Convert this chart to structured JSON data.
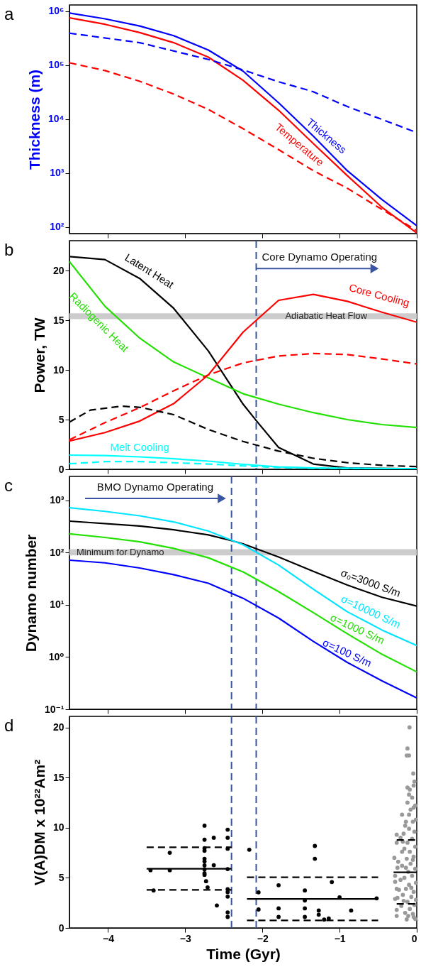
{
  "chart_data": [
    {
      "type": "line",
      "title": "a",
      "ylabel": "Thickness (m)",
      "log": true,
      "xlim": [
        -4.5,
        0
      ],
      "xticks": [
        {
          "value": -4,
          "label": null
        },
        {
          "value": -3,
          "label": null
        },
        {
          "value": -2,
          "label": null
        },
        {
          "value": -1,
          "label": null
        },
        {
          "value": 0,
          "label": null
        }
      ],
      "ylim": [
        75,
        1300000
      ],
      "yticks": [
        {
          "value": 100,
          "label": "10²"
        },
        {
          "value": 1000,
          "label": "10³"
        },
        {
          "value": 10000,
          "label": "10⁴"
        },
        {
          "value": 100000,
          "label": "10⁵"
        },
        {
          "value": 1000000,
          "label": "10⁶"
        }
      ],
      "tick_labels": "y",
      "series": [
        {
          "name": "Thickness",
          "color": "#0000ff",
          "x": [
            -4.5,
            -4.04,
            -3.59,
            -3.15,
            -2.7,
            -2.25,
            -1.79,
            -1.34,
            -0.9,
            -0.45,
            0
          ],
          "values": [
            920000,
            720000,
            530000,
            350000,
            190000,
            77000,
            20000,
            4800,
            1100,
            320,
            105
          ]
        },
        {
          "name": "Temperature",
          "color": "#ff0000",
          "x": [
            -4.5,
            -4.04,
            -3.59,
            -3.15,
            -2.7,
            -2.25,
            -1.79,
            -1.34,
            -0.9,
            -0.45,
            0
          ],
          "values": [
            750000,
            570000,
            400000,
            260000,
            140000,
            52000,
            14500,
            3500,
            890,
            230,
            77
          ]
        },
        {
          "color": "#0000ff",
          "line_style": "dashed",
          "x": [
            -4.5,
            -3.59,
            -2.7,
            -2.25,
            -1.79,
            -1.34,
            -0.9,
            -0.45,
            0
          ],
          "values": [
            390000,
            260000,
            127000,
            81000,
            49000,
            32000,
            17000,
            9800,
            5600
          ]
        },
        {
          "color": "#ff0000",
          "line_style": "dashed",
          "x": [
            -4.5,
            -4.04,
            -3.59,
            -3.15,
            -2.7,
            -2.25,
            -1.79,
            -1.34,
            -0.9,
            -0.45,
            0
          ],
          "values": [
            110000,
            79000,
            50000,
            29000,
            15000,
            6600,
            2700,
            1100,
            520,
            210,
            85
          ]
        }
      ]
    },
    {
      "type": "line",
      "title": "b",
      "ylabel": "Power, TW",
      "xlim": [
        -4.5,
        0
      ],
      "xticks": [
        {
          "value": -4,
          "label": null
        },
        {
          "value": -3,
          "label": null
        },
        {
          "value": -2,
          "label": null
        },
        {
          "value": -1,
          "label": null
        },
        {
          "value": 0,
          "label": null
        }
      ],
      "ylim": [
        0,
        23
      ],
      "yticks": [
        0,
        5,
        10,
        15,
        20
      ],
      "tick_labels": "y",
      "ref_lines": [
        {
          "axis": "x",
          "value": -2.08,
          "color": "#3a55a4",
          "line_style": "dashed"
        }
      ],
      "bands": [
        {
          "axis": "y",
          "from": 15.1,
          "to": 15.7,
          "label": "Adiabatic Heat Flow",
          "color": "#cccccc"
        }
      ],
      "annotations": [
        {
          "text": "Core Dynamo Operating",
          "x": -2.08,
          "y": 20.2
        }
      ],
      "series": [
        {
          "name": "Latent Heat",
          "color": "#000000",
          "x": [
            -4.5,
            -4.04,
            -3.59,
            -3.15,
            -2.7,
            -2.25,
            -2.08,
            -1.79,
            -1.34,
            -0.9,
            0
          ],
          "values": [
            21.4,
            21.1,
            19.2,
            16.2,
            11.9,
            6.55,
            4.9,
            2.2,
            0.53,
            0.13,
            0.05
          ]
        },
        {
          "name": "Radiogenic Heat",
          "color": "#22e000",
          "x": [
            -4.5,
            -4.04,
            -3.59,
            -3.15,
            -2.7,
            -2.25,
            -1.79,
            -1.34,
            -0.9,
            -0.45,
            0
          ],
          "values": [
            20.9,
            16.4,
            13.2,
            10.8,
            9.2,
            7.6,
            6.55,
            5.7,
            5.0,
            4.5,
            4.2
          ]
        },
        {
          "name": "Core Cooling",
          "color": "#ff0000",
          "x": [
            -4.5,
            -4.04,
            -3.59,
            -3.15,
            -2.7,
            -2.25,
            -1.79,
            -1.34,
            -0.9,
            -0.45,
            0
          ],
          "values": [
            2.84,
            3.7,
            4.85,
            6.6,
            9.5,
            13.8,
            17.0,
            17.6,
            16.9,
            15.8,
            14.8
          ]
        },
        {
          "name": "Melt Cooling",
          "color": "#00ffff",
          "x": [
            -4.5,
            -4.04,
            -3.59,
            -3.15,
            -2.7,
            -2.25,
            -1.79,
            -1.34,
            0
          ],
          "values": [
            1.43,
            1.38,
            1.25,
            1.06,
            0.82,
            0.5,
            0.24,
            0.13,
            0.05
          ]
        },
        {
          "color": "#ff0000",
          "line_style": "dashed",
          "x": [
            -4.5,
            -4.04,
            -3.59,
            -3.15,
            -2.7,
            -2.25,
            -1.79,
            -1.34,
            -0.9,
            -0.45,
            0
          ],
          "values": [
            2.97,
            4.7,
            6.2,
            7.9,
            9.5,
            10.7,
            11.4,
            11.65,
            11.55,
            11.1,
            10.6
          ]
        },
        {
          "color": "#000000",
          "line_style": "dashed",
          "x": [
            -4.5,
            -4.23,
            -3.82,
            -3.58,
            -3.15,
            -2.7,
            -2.25,
            -1.79,
            -1.34,
            -0.9,
            -0.45,
            0
          ],
          "values": [
            4.75,
            5.95,
            6.35,
            6.23,
            5.5,
            4.0,
            2.8,
            1.83,
            1.11,
            0.66,
            0.4,
            0.27
          ]
        },
        {
          "color": "#00ffff",
          "line_style": "dashed",
          "x": [
            -4.5,
            -4.04,
            -3.59,
            -3.15,
            -2.7,
            -2.25,
            -1.79,
            -1.34,
            0
          ],
          "values": [
            0.56,
            0.77,
            0.77,
            0.66,
            0.53,
            0.34,
            0.19,
            0.1,
            0.05
          ]
        }
      ]
    },
    {
      "type": "line",
      "title": "c",
      "ylabel": "Dynamo number",
      "log": true,
      "xlim": [
        -4.5,
        0
      ],
      "xticks": [
        {
          "value": -4,
          "label": null
        },
        {
          "value": -3,
          "label": null
        },
        {
          "value": -2,
          "label": null
        },
        {
          "value": -1,
          "label": null
        },
        {
          "value": 0,
          "label": null
        }
      ],
      "ylim": [
        0.1,
        2900
      ],
      "yticks": [
        {
          "value": 0.1,
          "label": "10⁻¹"
        },
        {
          "value": 1,
          "label": "10⁰"
        },
        {
          "value": 10,
          "label": "10¹"
        },
        {
          "value": 100,
          "label": "10²"
        },
        {
          "value": 1000,
          "label": "10³"
        }
      ],
      "tick_labels": "y",
      "ref_lines": [
        {
          "axis": "x",
          "value": -2.4,
          "color": "#3a55a4",
          "line_style": "dashed"
        },
        {
          "axis": "x",
          "value": -2.08,
          "color": "#3a55a4",
          "line_style": "dashed"
        }
      ],
      "bands": [
        {
          "axis": "y",
          "from": 89,
          "to": 117,
          "label": "Minimum for Dynamo",
          "color": "#cccccc"
        }
      ],
      "annotations": [
        "BMO Dynamo Operating"
      ],
      "series": [
        {
          "name": "σ₀=3000 S/m",
          "color": "#000000",
          "x": [
            -4.5,
            -3.59,
            -3.15,
            -2.7,
            -2.4,
            -2.25,
            -1.79,
            -1.34,
            -0.9,
            -0.45,
            0
          ],
          "values": [
            403,
            325,
            275,
            220,
            170,
            148,
            83,
            44,
            24,
            14,
            9.5
          ]
        },
        {
          "name": "σ=10000 S/m",
          "color": "#00e5ff",
          "x": [
            -4.5,
            -4.04,
            -3.59,
            -3.15,
            -2.7,
            -2.25,
            -1.79,
            -1.34,
            -0.9,
            -0.45,
            0
          ],
          "values": [
            730,
            620,
            510,
            390,
            260,
            142,
            58,
            20,
            7.4,
            3.3,
            1.66
          ]
        },
        {
          "name": "σ=1000 S/m",
          "color": "#22e000",
          "x": [
            -4.5,
            -4.04,
            -3.59,
            -3.15,
            -2.7,
            -2.25,
            -1.79,
            -1.34,
            -0.9,
            -0.45,
            0
          ],
          "values": [
            230,
            196,
            162,
            121,
            80,
            43,
            18,
            7.1,
            2.8,
            1.13,
            0.52
          ]
        },
        {
          "name": "σ=100 S/m",
          "color": "#0000ff",
          "x": [
            -4.5,
            -4.04,
            -3.59,
            -3.15,
            -2.7,
            -2.25,
            -1.79,
            -1.34,
            -0.9,
            -0.45,
            0
          ],
          "values": [
            72,
            64,
            51,
            38,
            26,
            13.4,
            5.6,
            2.0,
            0.79,
            0.35,
            0.165
          ]
        }
      ]
    },
    {
      "type": "scatter",
      "title": "d",
      "xlabel": "Time (Gyr)",
      "ylabel": "V(A)DM x 10²²Am²",
      "xlim": [
        -4.5,
        0
      ],
      "xticks": [
        {
          "value": -4,
          "label": "−4"
        },
        {
          "value": -3,
          "label": "−3"
        },
        {
          "value": -2,
          "label": "−2"
        },
        {
          "value": -1,
          "label": "−1"
        },
        0
      ],
      "ylim": [
        0,
        21.1
      ],
      "yticks": [
        0,
        5,
        10,
        15,
        20
      ],
      "ref_lines": [
        {
          "axis": "x",
          "value": -2.4,
          "color": "#3a55a4",
          "line_style": "dashed"
        },
        {
          "axis": "x",
          "value": -2.08,
          "color": "#3a55a4",
          "line_style": "dashed"
        }
      ],
      "series": [
        {
          "type": "line",
          "color": "#000000",
          "x": [
            -3.5,
            -2.4
          ],
          "values": [
            5.9,
            5.9
          ]
        },
        {
          "type": "line",
          "color": "#000000",
          "line_style": "dashed",
          "x": [
            -3.5,
            -2.4
          ],
          "values": [
            8.05,
            8.05
          ]
        },
        {
          "type": "line",
          "color": "#000000",
          "line_style": "dashed",
          "x": [
            -3.5,
            -2.4
          ],
          "values": [
            3.8,
            3.8
          ]
        },
        {
          "type": "line",
          "color": "#000000",
          "x": [
            -2.2,
            -0.52
          ],
          "values": [
            2.9,
            2.9
          ]
        },
        {
          "type": "line",
          "color": "#000000",
          "line_style": "dashed",
          "x": [
            -2.2,
            -0.5
          ],
          "values": [
            5.05,
            5.05
          ]
        },
        {
          "type": "line",
          "color": "#000000",
          "line_style": "dashed",
          "x": [
            -2.2,
            -0.5
          ],
          "values": [
            0.75,
            0.75
          ]
        },
        {
          "type": "scatter",
          "color": "#999999",
          "marker": "circle",
          "x": [
            -0.094,
            -0.12,
            -0.13,
            -0.1,
            -0.045,
            -0.12,
            -0.1,
            -0.04,
            -0.19,
            -0.1,
            -0.14,
            -0.26,
            -0.17,
            -0.26,
            -0.29,
            -0.19,
            -0.25,
            -0.28,
            -0.26,
            -0.28,
            -0.26,
            -0.26,
            -0.13,
            -0.04,
            -0.02,
            -0.05,
            -0.09,
            -0.15,
            -0.2,
            -0.12,
            -0.03,
            -0.07,
            -0.18,
            -0.23,
            -0.14,
            -0.04,
            -0.1,
            -0.01,
            -0.21,
            -0.16,
            -0.06,
            -0.11,
            -0.02,
            -0.19,
            -0.08,
            -0.13,
            -0.04,
            -0.09,
            -0.16,
            -0.02,
            -0.12,
            -0.06,
            -0.21,
            -0.03,
            -0.1,
            -0.15,
            -0.05,
            -0.08,
            -0.02,
            -0.12,
            -0.06,
            -0.09,
            -0.03,
            -0.07,
            -0.17,
            -0.25,
            -0.28,
            -0.24,
            -0.01,
            -0.11,
            -0.14,
            -0.05,
            -0.18,
            -0.01,
            -0.04
          ],
          "values": [
            20.0,
            17.9,
            17.2,
            17.2,
            15.4,
            14.0,
            13.3,
            14.2,
            11.3,
            11.3,
            10.6,
            9.3,
            9.4,
            8.5,
            7.0,
            7.6,
            6.0,
            4.6,
            3.9,
            2.9,
            1.8,
            1.2,
            0.85,
            1.1,
            0.9,
            1.4,
            1.9,
            1.5,
            2.2,
            2.6,
            2.3,
            3.1,
            3.3,
            3.8,
            3.9,
            3.6,
            4.3,
            4.5,
            4.8,
            5.0,
            5.2,
            5.6,
            5.9,
            6.2,
            6.4,
            6.9,
            7.1,
            7.6,
            7.9,
            8.1,
            8.5,
            8.9,
            9.0,
            9.6,
            9.9,
            10.2,
            10.6,
            11.8,
            12.2,
            12.5,
            13.0,
            13.8,
            14.6,
            4.0,
            2.7,
            3.0,
            5.2,
            6.6,
            2.8,
            1.2,
            6.0,
            6.8,
            8.6,
            10.8,
            12.0
          ]
        },
        {
          "type": "scatter",
          "color": "#000000",
          "marker": "circle",
          "x": [
            -3.45,
            -3.41,
            -3.2,
            -3.2,
            -2.75,
            -2.75,
            -2.75,
            -2.75,
            -2.75,
            -2.75,
            -2.75,
            -2.75,
            -2.75,
            -2.75,
            -2.63,
            -2.63,
            -2.73,
            -2.71,
            -2.59,
            -2.45,
            -2.45,
            -2.45,
            -2.45,
            -2.45,
            -2.45,
            -2.45,
            -2.45,
            -2.45,
            -2.17,
            -2.05,
            -2.05,
            -1.79,
            -1.79,
            -1.79,
            -1.45,
            -1.45,
            -1.45,
            -1.45,
            -1.32,
            -1.32,
            -1.27,
            -1.27,
            -1.2,
            -1.14,
            -1.1,
            -1.0,
            -0.85,
            -0.52
          ],
          "values": [
            5.76,
            3.74,
            7.5,
            5.76,
            10.2,
            8.8,
            7.95,
            7.7,
            6.9,
            6.63,
            6.24,
            5.84,
            5.45,
            5.3,
            9.0,
            6.26,
            4.66,
            4.05,
            2.24,
            9.8,
            9.0,
            7.9,
            5.87,
            3.87,
            3.58,
            3.13,
            1.55,
            1.1,
            7.8,
            3.55,
            1.84,
            4.26,
            1.95,
            1.1,
            3.74,
            2.74,
            1.95,
            1.1,
            8.18,
            6.9,
            1.74,
            1.32,
            0.84,
            0.95,
            4.58,
            3.05,
            1.74,
            2.95
          ]
        },
        {
          "type": "line",
          "color": "#000000",
          "x": [
            -0.3,
            0
          ],
          "values": [
            5.55,
            5.55
          ]
        },
        {
          "type": "line",
          "color": "#000000",
          "line_style": "dashed",
          "x": [
            -0.26,
            0
          ],
          "values": [
            8.77,
            8.77
          ]
        },
        {
          "type": "line",
          "color": "#000000",
          "line_style": "dashed",
          "x": [
            -0.26,
            0
          ],
          "values": [
            2.4,
            2.4
          ]
        }
      ]
    }
  ]
}
